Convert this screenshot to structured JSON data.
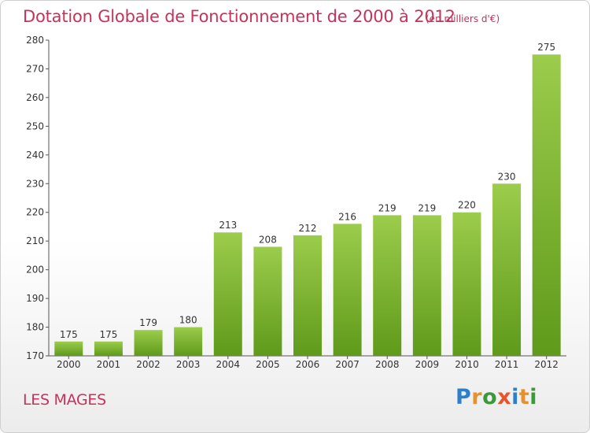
{
  "header": {
    "title": "Dotation Globale de Fonctionnement de 2000 à 2012",
    "subtitle": "(en milliers d'€)"
  },
  "footer": {
    "commune": "LES MAGES",
    "logo_text": "Proxiti"
  },
  "colors": {
    "title": "#c8325a",
    "bar_top": "#9ccc4c",
    "bar_bottom": "#5f9a1a"
  },
  "chart_data": {
    "type": "bar",
    "title": "Dotation Globale de Fonctionnement de 2000 à 2012",
    "subtitle": "(en milliers d'€)",
    "xlabel": "",
    "ylabel": "",
    "categories": [
      "2000",
      "2001",
      "2002",
      "2003",
      "2004",
      "2005",
      "2006",
      "2007",
      "2008",
      "2009",
      "2010",
      "2011",
      "2012"
    ],
    "values": [
      175,
      175,
      179,
      180,
      213,
      208,
      212,
      216,
      219,
      219,
      220,
      230,
      275
    ],
    "ylim": [
      170,
      280
    ],
    "yticks": [
      170,
      180,
      190,
      200,
      210,
      220,
      230,
      240,
      250,
      260,
      270,
      280
    ],
    "grid": false,
    "legend": "none"
  }
}
